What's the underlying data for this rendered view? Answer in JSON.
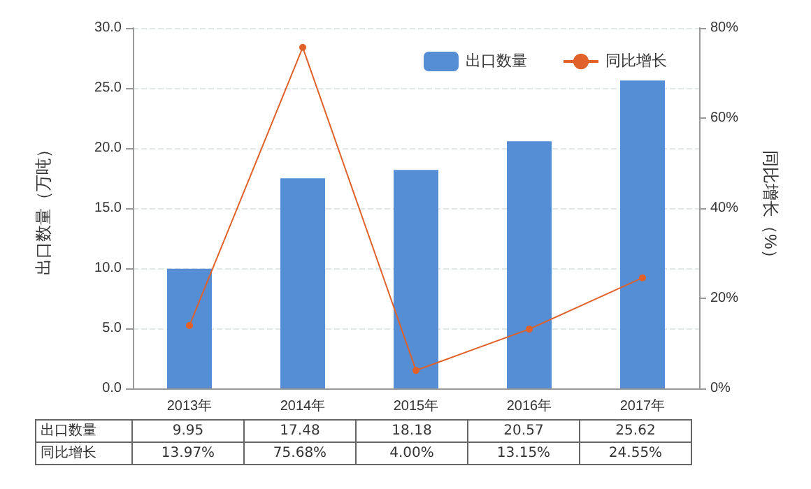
{
  "chart_data": {
    "type": "bar",
    "categories": [
      "2013年",
      "2014年",
      "2015年",
      "2016年",
      "2017年"
    ],
    "series": [
      {
        "name": "出口数量",
        "color": "#558ed5",
        "values": [
          9.95,
          17.48,
          18.18,
          20.57,
          25.62
        ],
        "value_labels": [
          "9.95",
          "17.48",
          "18.18",
          "20.57",
          "25.62"
        ]
      },
      {
        "name": "同比增长",
        "type": "line",
        "axis": "y2",
        "color": "#e0622a",
        "marker": "circle",
        "values": [
          13.97,
          75.68,
          4.0,
          13.15,
          24.55
        ],
        "value_labels": [
          "13.97%",
          "75.68%",
          "4.00%",
          "13.15%",
          "24.55%"
        ]
      }
    ],
    "ylabel": "出口数量（万吨）",
    "y2label": "同比增长（%）",
    "ylim": [
      0,
      30
    ],
    "yticks": [
      {
        "value": 0,
        "label": "0.0"
      },
      {
        "value": 5,
        "label": "5.0"
      },
      {
        "value": 10,
        "label": "10.0"
      },
      {
        "value": 15,
        "label": "15.0"
      },
      {
        "value": 20,
        "label": "20.0"
      },
      {
        "value": 25,
        "label": "25.0"
      },
      {
        "value": 30,
        "label": "30.0"
      }
    ],
    "y2lim": [
      0,
      80
    ],
    "y2ticks": [
      {
        "value": 0,
        "label": "0%"
      },
      {
        "value": 20,
        "label": "20%"
      },
      {
        "value": 40,
        "label": "40%"
      },
      {
        "value": 60,
        "label": "60%"
      },
      {
        "value": 80,
        "label": "80%"
      }
    ],
    "grid": "y",
    "legend": "top right"
  }
}
